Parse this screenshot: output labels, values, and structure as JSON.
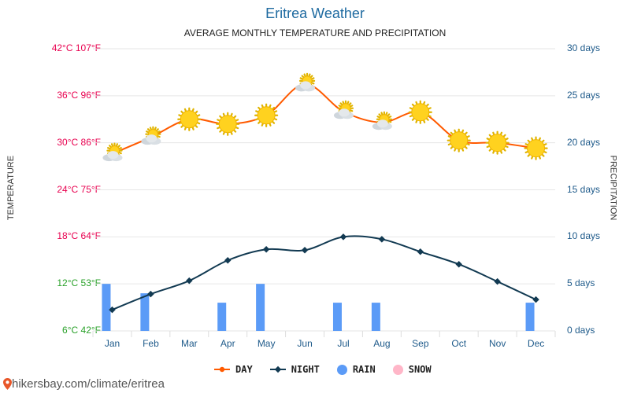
{
  "title": "Eritrea Weather",
  "subtitle": "AVERAGE MONTHLY TEMPERATURE AND PRECIPITATION",
  "colors": {
    "day": "#ff5a00",
    "night": "#123a52",
    "rain": "#5b9bf7",
    "snow": "#ffb6c8",
    "temp_tick_hot": "#e8004f",
    "temp_tick_cool": "#2aa12a",
    "precip_tick": "#1e5a8a"
  },
  "chart_data": {
    "type": "line",
    "categories": [
      "Jan",
      "Feb",
      "Mar",
      "Apr",
      "May",
      "Jun",
      "Jul",
      "Aug",
      "Sep",
      "Oct",
      "Nov",
      "Dec"
    ],
    "series": [
      {
        "name": "DAY",
        "unit": "°C",
        "axis": "left",
        "values": [
          28.6,
          30.7,
          33.0,
          32.4,
          33.5,
          37.5,
          34.0,
          32.6,
          33.9,
          30.3,
          30.0,
          29.3
        ]
      },
      {
        "name": "NIGHT",
        "unit": "°C",
        "axis": "left",
        "values": [
          8.7,
          10.7,
          12.4,
          15.0,
          16.4,
          16.3,
          18.0,
          17.7,
          16.1,
          14.5,
          12.3,
          10.0
        ]
      },
      {
        "name": "RAIN",
        "unit": "days",
        "axis": "right",
        "values": [
          5,
          4,
          0,
          3,
          5,
          0,
          3,
          3,
          0,
          0,
          0,
          3
        ]
      },
      {
        "name": "SNOW",
        "unit": "days",
        "axis": "right",
        "values": [
          0,
          0,
          0,
          0,
          0,
          0,
          0,
          0,
          0,
          0,
          0,
          0
        ]
      }
    ],
    "weather_icons": [
      "sun-cloud",
      "sun-cloud",
      "sun",
      "sun",
      "sun",
      "sun-cloud",
      "sun-cloud",
      "sun-cloud",
      "sun",
      "sun",
      "sun",
      "sun"
    ],
    "ylabel_left": "TEMPERATURE",
    "ylabel_right": "PRECIPITATION",
    "ylim_left": [
      6,
      42
    ],
    "ylim_right": [
      0,
      30
    ],
    "yticks_left": [
      "42°C 107°F",
      "36°C 96°F",
      "30°C 86°F",
      "24°C 75°F",
      "18°C 64°F",
      "12°C 53°F",
      "6°C 42°F"
    ],
    "yticks_right": [
      "30 days",
      "25 days",
      "20 days",
      "15 days",
      "10 days",
      "5 days",
      "0 days"
    ],
    "grid": true,
    "legend_position": "bottom",
    "legend": [
      "DAY",
      "NIGHT",
      "RAIN",
      "SNOW"
    ]
  },
  "footer": {
    "text": "hikersbay.com/climate/eritrea"
  }
}
